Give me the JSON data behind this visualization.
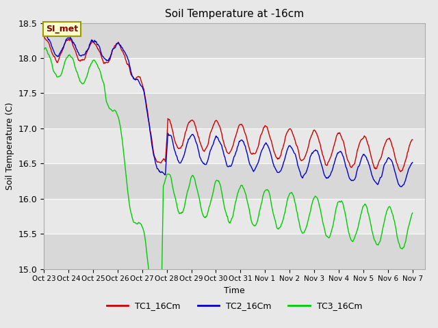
{
  "title": "Soil Temperature at -16cm",
  "xlabel": "Time",
  "ylabel": "Soil Temperature (C)",
  "ylim": [
    15.0,
    18.5
  ],
  "tick_labels": [
    "Oct 23",
    "Oct 24",
    "Oct 25",
    "Oct 26",
    "Oct 27",
    "Oct 28",
    "Oct 29",
    "Oct 30",
    "Oct 31",
    "Nov 1",
    "Nov 2",
    "Nov 3",
    "Nov 4",
    "Nov 5",
    "Nov 6",
    "Nov 7"
  ],
  "tick_positions": [
    0,
    1,
    2,
    3,
    4,
    5,
    6,
    7,
    8,
    9,
    10,
    11,
    12,
    13,
    14,
    15
  ],
  "line_colors": [
    "#cc0000",
    "#0000cc",
    "#00cc00"
  ],
  "line_labels": [
    "TC1_16Cm",
    "TC2_16Cm",
    "TC3_16Cm"
  ],
  "bg_color": "#e8e8e8",
  "annotation_text": "SI_met",
  "annotation_bg": "#ffffcc",
  "annotation_border": "#999900"
}
